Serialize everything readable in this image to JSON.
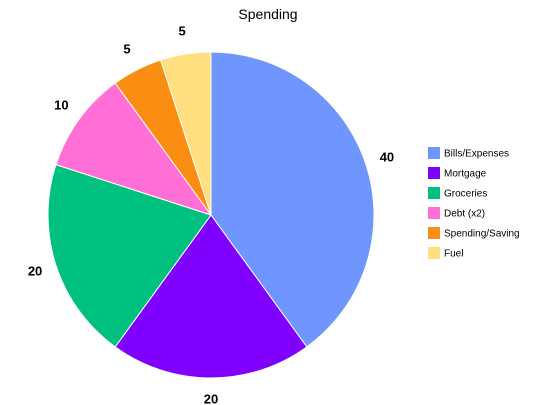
{
  "chart_data": {
    "type": "pie",
    "title": "Spending",
    "categories": [
      "Bills/Expenses",
      "Mortgage",
      "Groceries",
      "Debt (x2)",
      "Spending/Saving",
      "Fuel"
    ],
    "values": [
      40,
      20,
      20,
      10,
      5,
      5
    ],
    "labels": [
      "40",
      "20",
      "20",
      "10",
      "5",
      "5"
    ],
    "colors": [
      "#6f96fc",
      "#7f00fc",
      "#00c07f",
      "#ff6fd6",
      "#f98e13",
      "#ffdf7f"
    ],
    "start_angle_deg": 0,
    "direction": "clockwise",
    "legend_position": "right"
  }
}
